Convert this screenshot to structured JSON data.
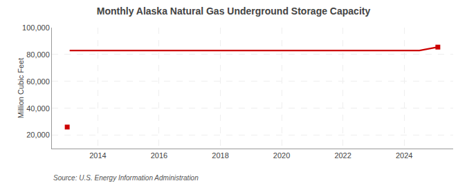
{
  "chart_data": {
    "type": "line",
    "title": "Monthly Alaska Natural Gas Underground Storage Capacity",
    "ylabel": "Million Cubic Feet",
    "annotations": [
      "Source: U.S. Energy Information Administration"
    ],
    "xlim": [
      2012.5,
      2025.6
    ],
    "ylim": [
      10000,
      100000
    ],
    "xticks": [
      2014,
      2016,
      2018,
      2020,
      2022,
      2024
    ],
    "yticks": [
      {
        "value": 20000,
        "label": "20,000"
      },
      {
        "value": 40000,
        "label": "40,000"
      },
      {
        "value": 60000,
        "label": "60,000"
      },
      {
        "value": 80000,
        "label": "80,000"
      },
      {
        "value": 100000,
        "label": "100,000"
      }
    ],
    "grid": true,
    "series": [
      {
        "type": "line",
        "color": "#cc0000",
        "x": [
          2013.08,
          2013.5,
          2014.0,
          2015.0,
          2016.0,
          2017.0,
          2018.0,
          2019.0,
          2020.0,
          2021.0,
          2022.0,
          2023.0,
          2024.0,
          2024.5,
          2025.1
        ],
        "values": [
          83000,
          83000,
          83000,
          83000,
          83000,
          83000,
          83000,
          83000,
          83000,
          83000,
          83000,
          83000,
          83000,
          83000,
          85500
        ]
      },
      {
        "type": "scatter",
        "marker": "square",
        "color": "#cc0000",
        "x": [
          2013.0
        ],
        "values": [
          26000
        ]
      },
      {
        "type": "scatter",
        "marker": "square",
        "color": "#cc0000",
        "x": [
          2025.1
        ],
        "values": [
          85500
        ]
      }
    ]
  }
}
